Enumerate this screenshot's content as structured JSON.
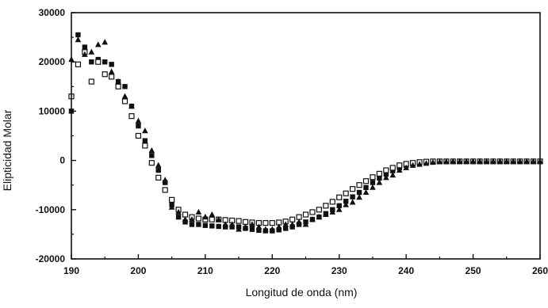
{
  "chart_data": {
    "type": "scatter",
    "title": "",
    "xlabel": "Longitud de onda (nm)",
    "ylabel": "Elipticidad Molar",
    "xlim": [
      190,
      260
    ],
    "ylim": [
      -20000,
      30000
    ],
    "xticks": [
      190,
      200,
      210,
      220,
      230,
      240,
      250,
      260
    ],
    "yticks": [
      -20000,
      -10000,
      0,
      10000,
      20000,
      30000
    ],
    "grid": false,
    "legend": "none",
    "series": [
      {
        "marker": "square-filled",
        "color": "#111111",
        "x": [
          190,
          191,
          192,
          193,
          194,
          195,
          196,
          197,
          198,
          199,
          200,
          201,
          202,
          203,
          204,
          205,
          206,
          207,
          208,
          209,
          210,
          211,
          212,
          213,
          214,
          215,
          216,
          217,
          218,
          219,
          220,
          221,
          222,
          223,
          224,
          225,
          226,
          227,
          228,
          229,
          230,
          231,
          232,
          233,
          234,
          235,
          236,
          237,
          238,
          239,
          240,
          241,
          242,
          243,
          244,
          245,
          246,
          247,
          248,
          249,
          250,
          251,
          252,
          253,
          254,
          255,
          256,
          257,
          258,
          259,
          260
        ],
        "y": [
          10000,
          25500,
          23000,
          20000,
          20500,
          20000,
          19500,
          16000,
          15000,
          11000,
          7000,
          4000,
          1000,
          -2000,
          -4500,
          -9000,
          -11500,
          -12500,
          -13000,
          -13000,
          -13200,
          -13300,
          -13400,
          -13500,
          -13500,
          -13500,
          -13800,
          -14000,
          -14200,
          -14300,
          -14300,
          -14100,
          -13800,
          -13500,
          -13000,
          -12500,
          -12000,
          -11500,
          -10800,
          -10000,
          -9200,
          -8300,
          -7400,
          -6500,
          -5500,
          -4500,
          -3600,
          -2800,
          -2100,
          -1500,
          -1000,
          -700,
          -500,
          -350,
          -250,
          -200,
          -200,
          -200,
          -200,
          -200,
          -200,
          -200,
          -200,
          -200,
          -200,
          -200,
          -200,
          -200,
          -200,
          -200,
          -200
        ]
      },
      {
        "marker": "square-open",
        "color": "#111111",
        "x": [
          190,
          191,
          192,
          193,
          194,
          195,
          196,
          197,
          198,
          199,
          200,
          201,
          202,
          203,
          204,
          205,
          206,
          207,
          208,
          209,
          210,
          211,
          212,
          213,
          214,
          215,
          216,
          217,
          218,
          219,
          220,
          221,
          222,
          223,
          224,
          225,
          226,
          227,
          228,
          229,
          230,
          231,
          232,
          233,
          234,
          235,
          236,
          237,
          238,
          239,
          240,
          241,
          242,
          243,
          244,
          245,
          246,
          247,
          248,
          249,
          250,
          251,
          252,
          253,
          254,
          255,
          256,
          257,
          258,
          259,
          260
        ],
        "y": [
          13000,
          19500,
          22000,
          16000,
          20000,
          17500,
          17000,
          15000,
          12000,
          9000,
          5000,
          3000,
          -500,
          -3500,
          -6000,
          -8000,
          -10000,
          -11000,
          -11500,
          -11800,
          -12000,
          -12000,
          -12000,
          -12100,
          -12200,
          -12300,
          -12500,
          -12600,
          -12700,
          -12700,
          -12700,
          -12600,
          -12400,
          -12000,
          -11500,
          -11000,
          -10500,
          -10000,
          -9200,
          -8400,
          -7500,
          -6700,
          -5800,
          -5000,
          -4200,
          -3400,
          -2700,
          -2000,
          -1500,
          -1000,
          -700,
          -500,
          -350,
          -250,
          -200,
          -200,
          -200,
          -200,
          -200,
          -200,
          -200,
          -200,
          -200,
          -200,
          -200,
          -200,
          -200,
          -200,
          -200,
          -200,
          -200
        ]
      },
      {
        "marker": "triangle-filled",
        "color": "#111111",
        "x": [
          190,
          191,
          192,
          193,
          194,
          195,
          196,
          197,
          198,
          199,
          200,
          201,
          202,
          203,
          204,
          205,
          206,
          207,
          208,
          209,
          210,
          211,
          212,
          213,
          214,
          215,
          216,
          217,
          218,
          219,
          220,
          221,
          222,
          223,
          224,
          225,
          226,
          227,
          228,
          229,
          230,
          231,
          232,
          233,
          234,
          235,
          236,
          237,
          238,
          239,
          240,
          241,
          242,
          243,
          244,
          245,
          246,
          247,
          248,
          249,
          250,
          251,
          252,
          253,
          254,
          255,
          256,
          257,
          258,
          259,
          260
        ],
        "y": [
          20500,
          24500,
          21500,
          22000,
          23500,
          24000,
          18000,
          16000,
          13000,
          11000,
          8000,
          6000,
          2000,
          -1000,
          -4000,
          -9500,
          -10500,
          -12000,
          -12000,
          -10500,
          -11500,
          -11000,
          -12000,
          -13000,
          -13000,
          -14000,
          -13500,
          -13000,
          -13500,
          -14000,
          -14000,
          -13500,
          -13000,
          -13000,
          -12500,
          -13000,
          -12000,
          -11500,
          -11000,
          -10500,
          -10000,
          -9000,
          -8500,
          -7500,
          -6500,
          -5500,
          -4500,
          -3500,
          -3000,
          -2000,
          -1500,
          -1000,
          -800,
          -600,
          -400,
          -300,
          -250,
          -200,
          -200,
          -200,
          -200,
          -200,
          -200,
          -200,
          -200,
          -200,
          -200,
          -200,
          -200,
          -200,
          -200
        ]
      }
    ]
  }
}
